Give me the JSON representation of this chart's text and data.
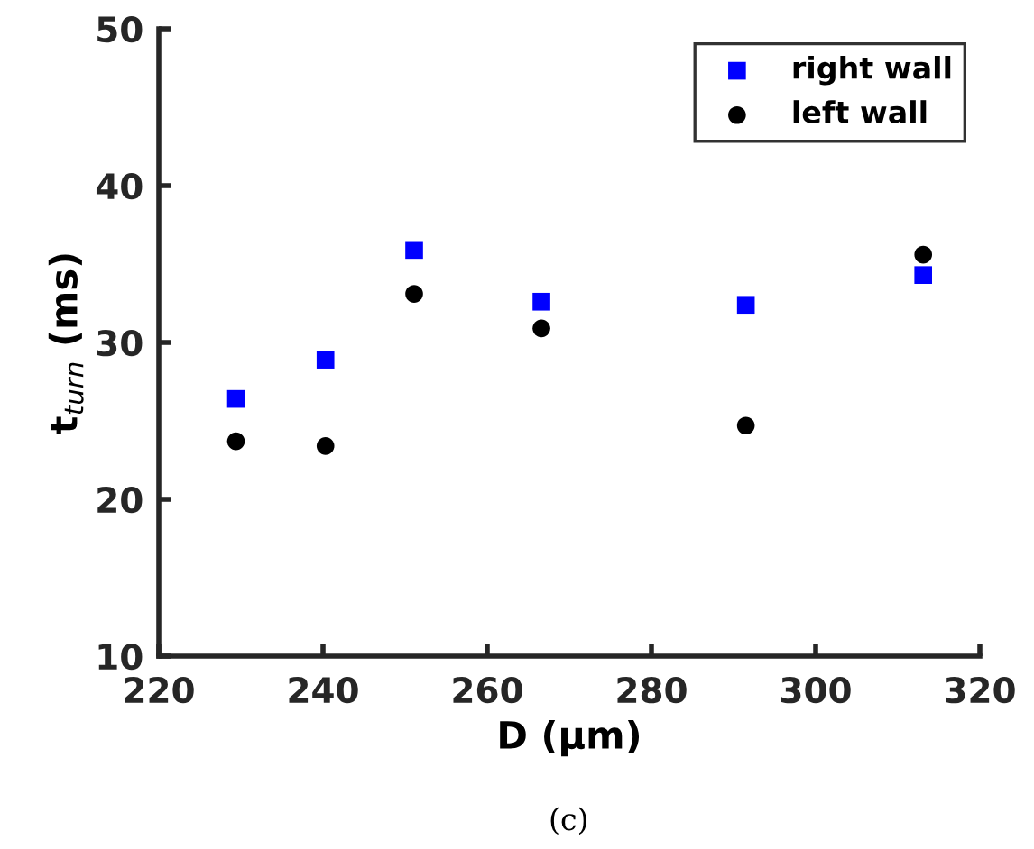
{
  "chart_data": {
    "type": "scatter",
    "xlabel": "D (μm)",
    "ylabel": "t$_{turn}$ (ms)",
    "annotations": [
      "(c)"
    ],
    "x": [
      229.4,
      240.3,
      251.1,
      266.6,
      291.5,
      313.1
    ],
    "series": [
      {
        "name": "right wall",
        "color": "#0000ff",
        "marker": "square",
        "values": [
          26.4,
          28.9,
          35.9,
          32.6,
          32.4,
          34.3
        ]
      },
      {
        "name": "left wall",
        "color": "#000000",
        "marker": "circle",
        "values": [
          23.7,
          23.4,
          33.1,
          30.9,
          24.7,
          35.6
        ]
      }
    ],
    "xlim": [
      220,
      320
    ],
    "xticks": [
      220,
      240,
      260,
      280,
      300,
      320
    ],
    "ylim": [
      10,
      50
    ],
    "yticks": [
      10,
      20,
      30,
      40,
      50
    ],
    "grid": false,
    "legend": "top right"
  }
}
